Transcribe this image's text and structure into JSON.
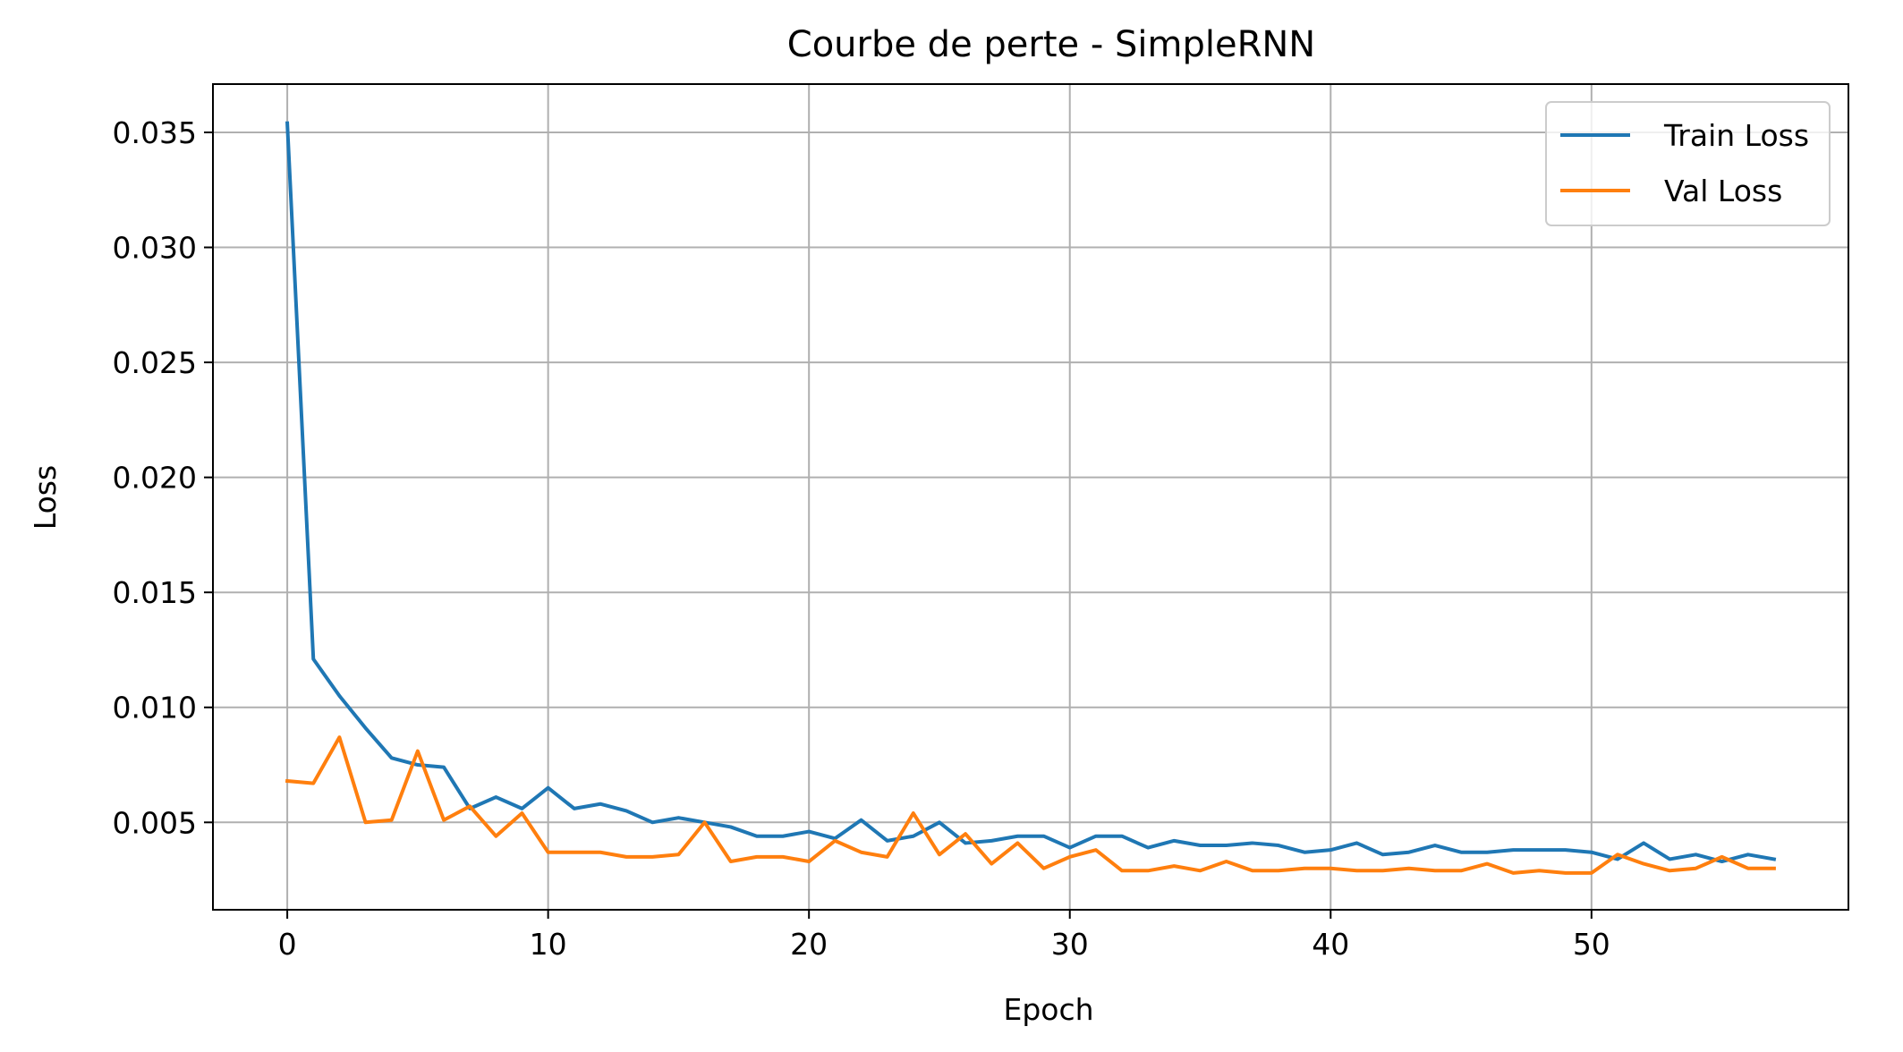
{
  "chart_data": {
    "type": "line",
    "title": "Courbe de perte - SimpleRNN",
    "xlabel": "Epoch",
    "ylabel": "Loss",
    "xlim": [
      -2.85,
      59.85
    ],
    "ylim": [
      0.0012,
      0.0371
    ],
    "xticks": [
      0,
      10,
      20,
      30,
      40,
      50
    ],
    "xtick_labels": [
      "0",
      "10",
      "20",
      "30",
      "40",
      "50"
    ],
    "yticks": [
      0.005,
      0.01,
      0.015,
      0.02,
      0.025,
      0.03,
      0.035
    ],
    "ytick_labels": [
      "0.005",
      "0.010",
      "0.015",
      "0.020",
      "0.025",
      "0.030",
      "0.035"
    ],
    "grid": true,
    "legend_position": "top-right",
    "x": [
      0,
      1,
      2,
      3,
      4,
      5,
      6,
      7,
      8,
      9,
      10,
      11,
      12,
      13,
      14,
      15,
      16,
      17,
      18,
      19,
      20,
      21,
      22,
      23,
      24,
      25,
      26,
      27,
      28,
      29,
      30,
      31,
      32,
      33,
      34,
      35,
      36,
      37,
      38,
      39,
      40,
      41,
      42,
      43,
      44,
      45,
      46,
      47,
      48,
      49,
      50,
      51,
      52,
      53,
      54,
      55,
      56,
      57
    ],
    "series": [
      {
        "name": "Train Loss",
        "color": "#1f77b4",
        "values": [
          0.0354,
          0.0121,
          0.0105,
          0.0091,
          0.0078,
          0.0075,
          0.0074,
          0.0056,
          0.0061,
          0.0056,
          0.0065,
          0.0056,
          0.0058,
          0.0055,
          0.005,
          0.0052,
          0.005,
          0.0048,
          0.0044,
          0.0044,
          0.0046,
          0.0043,
          0.0051,
          0.0042,
          0.0044,
          0.005,
          0.0041,
          0.0042,
          0.0044,
          0.0044,
          0.0039,
          0.0044,
          0.0044,
          0.0039,
          0.0042,
          0.004,
          0.004,
          0.0041,
          0.004,
          0.0037,
          0.0038,
          0.0041,
          0.0036,
          0.0037,
          0.004,
          0.0037,
          0.0037,
          0.0038,
          0.0038,
          0.0038,
          0.0037,
          0.0034,
          0.0041,
          0.0034,
          0.0036,
          0.0033,
          0.0036,
          0.0034
        ]
      },
      {
        "name": "Val Loss",
        "color": "#ff7f0e",
        "values": [
          0.0068,
          0.0067,
          0.0087,
          0.005,
          0.0051,
          0.0081,
          0.0051,
          0.0057,
          0.0044,
          0.0054,
          0.0037,
          0.0037,
          0.0037,
          0.0035,
          0.0035,
          0.0036,
          0.005,
          0.0033,
          0.0035,
          0.0035,
          0.0033,
          0.0042,
          0.0037,
          0.0035,
          0.0054,
          0.0036,
          0.0045,
          0.0032,
          0.0041,
          0.003,
          0.0035,
          0.0038,
          0.0029,
          0.0029,
          0.0031,
          0.0029,
          0.0033,
          0.0029,
          0.0029,
          0.003,
          0.003,
          0.0029,
          0.0029,
          0.003,
          0.0029,
          0.0029,
          0.0032,
          0.0028,
          0.0029,
          0.0028,
          0.0028,
          0.0036,
          0.0032,
          0.0029,
          0.003,
          0.0035,
          0.003,
          0.003
        ]
      }
    ]
  }
}
